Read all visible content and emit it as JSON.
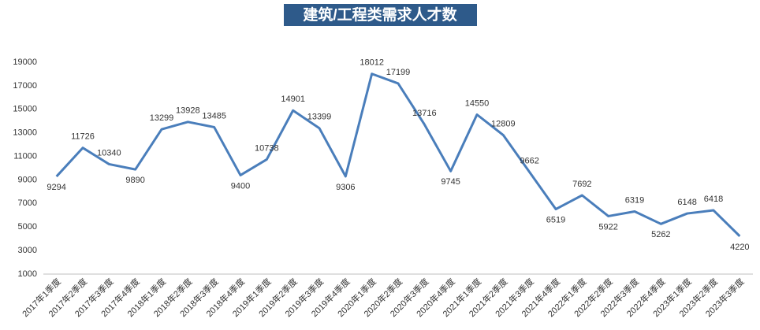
{
  "chart_data": {
    "type": "line",
    "title": "建筑/工程类需求人才数",
    "categories": [
      "2017年1季度",
      "2017年2季度",
      "2017年3季度",
      "2017年4季度",
      "2018年1季度",
      "2018年2季度",
      "2018年3季度",
      "2018年4季度",
      "2019年1季度",
      "2019年2季度",
      "2019年3季度",
      "2019年4季度",
      "2020年1季度",
      "2020年2季度",
      "2020年3季度",
      "2020年4季度",
      "2021年1季度",
      "2021年2季度",
      "2021年3季度",
      "2021年4季度",
      "2022年1季度",
      "2022年2季度",
      "2022年3季度",
      "2022年4季度",
      "2023年1季度",
      "2023年2季度",
      "2023年3季度"
    ],
    "values": [
      9294,
      11726,
      10340,
      9890,
      13299,
      13928,
      13485,
      9400,
      10738,
      14901,
      13399,
      9306,
      18012,
      17199,
      13716,
      9745,
      14550,
      12809,
      9662,
      6519,
      7692,
      5922,
      6319,
      5262,
      6148,
      6418,
      4220
    ],
    "color": "#4a7ebb",
    "ylim": [
      1000,
      19000
    ],
    "yticks": [
      1000,
      3000,
      5000,
      7000,
      9000,
      11000,
      13000,
      15000,
      17000,
      19000
    ],
    "grid": false
  }
}
